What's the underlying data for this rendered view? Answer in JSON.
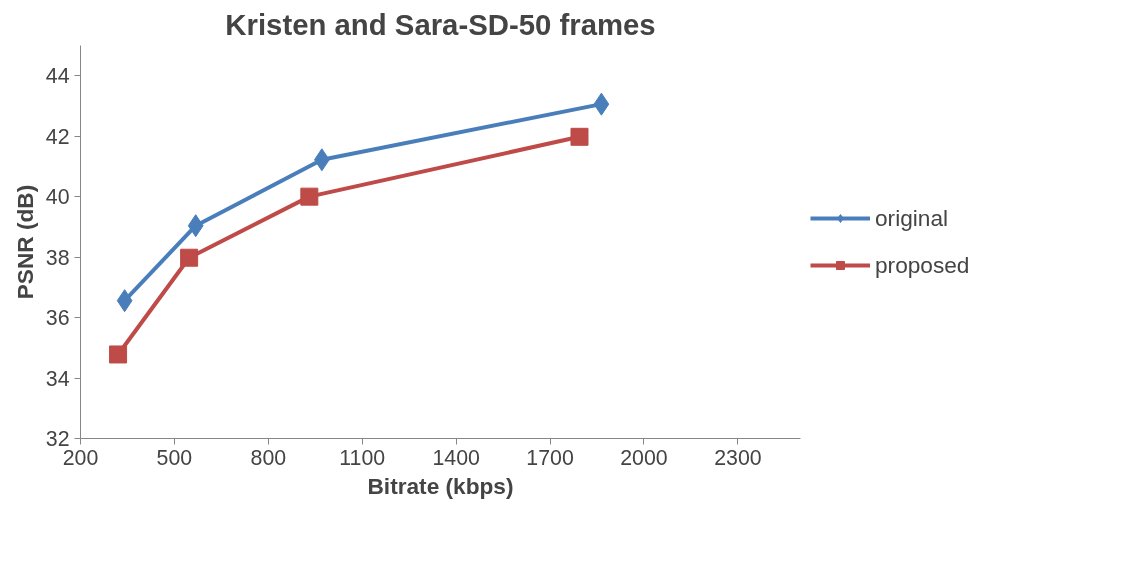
{
  "chart_data": {
    "type": "line",
    "title": "Kristen and Sara-SD-50 frames",
    "xlabel": "Bitrate (kbps)",
    "ylabel": "PSNR (dB)",
    "xlim": [
      200,
      2500
    ],
    "xticks": [
      200,
      500,
      800,
      1100,
      1400,
      1700,
      2000,
      2300
    ],
    "ylim": [
      32,
      45
    ],
    "yticks": [
      32,
      34,
      36,
      38,
      40,
      42,
      44
    ],
    "grid": false,
    "legend": "right",
    "line_style": "solid",
    "series": [
      {
        "name": "original",
        "color": "#4a7ebb",
        "marker": "diamond",
        "x": [
          341,
          568,
          971,
          1864
        ],
        "values": [
          36.56,
          39.04,
          41.22,
          43.06
        ]
      },
      {
        "name": "proposed",
        "color": "#be4b48",
        "marker": "square",
        "x": [
          320,
          547,
          931,
          1794
        ],
        "values": [
          34.78,
          37.98,
          40.0,
          41.98
        ]
      }
    ]
  }
}
